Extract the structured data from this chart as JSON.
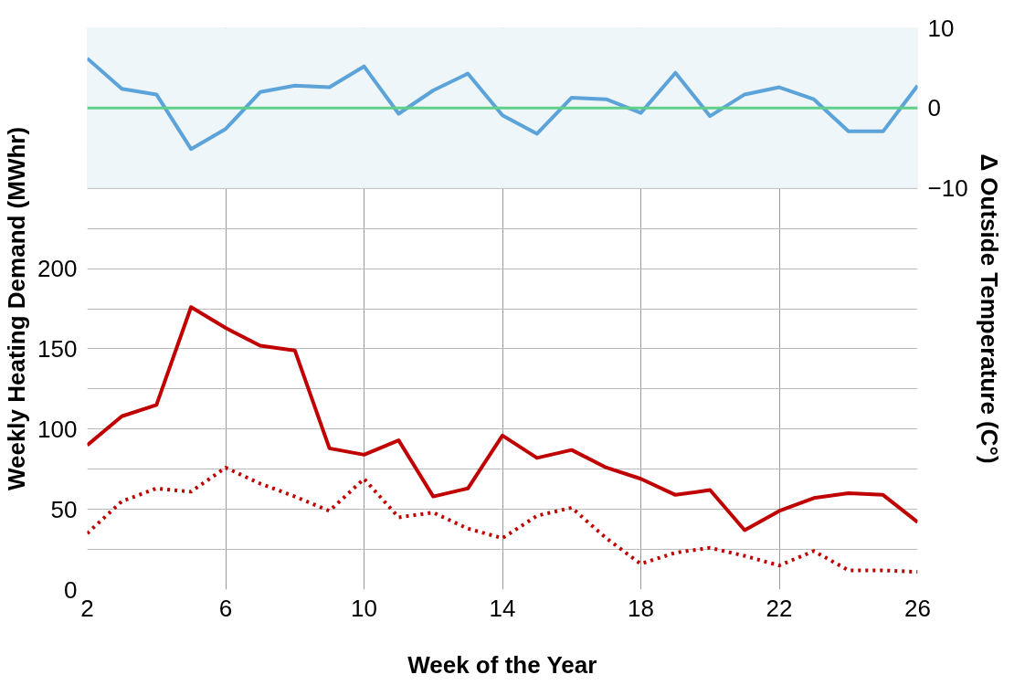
{
  "chart_data": {
    "type": "line",
    "xlabel": "Week of the Year",
    "ylabel": "Weekly Heating Demand (MWhr)",
    "y2label": "Δ Outside Temperature (C°)",
    "x": [
      2,
      3,
      4,
      5,
      6,
      7,
      8,
      9,
      10,
      11,
      12,
      13,
      14,
      15,
      16,
      17,
      18,
      19,
      20,
      21,
      22,
      23,
      24,
      25,
      26
    ],
    "series": [
      {
        "color": "#c00000",
        "line_style": "solid",
        "values": [
          90,
          108,
          115,
          176,
          163,
          152,
          149,
          88,
          84,
          93,
          58,
          63,
          96,
          82,
          87,
          76,
          69,
          59,
          62,
          37,
          49,
          57,
          60,
          59,
          42
        ]
      },
      {
        "color": "#c00000",
        "line_style": "dotted",
        "values": [
          35,
          55,
          63,
          61,
          76,
          66,
          58,
          49,
          69,
          45,
          48,
          38,
          32,
          46,
          51,
          32,
          16,
          23,
          26,
          21,
          15,
          24,
          12,
          12,
          11
        ]
      },
      {
        "color": "#5ba3d9",
        "line_style": "solid",
        "axis": "y2",
        "values": [
          6.2,
          2.4,
          1.7,
          -5.1,
          -2.6,
          2.0,
          2.8,
          2.6,
          5.2,
          -0.7,
          2.2,
          4.3,
          -0.9,
          -3.2,
          1.3,
          1.1,
          -0.6,
          4.4,
          -1.0,
          1.7,
          2.6,
          1.1,
          -2.9,
          -2.9,
          2.8
        ]
      }
    ],
    "xlim": [
      2,
      26
    ],
    "xticks": [
      2,
      6,
      10,
      14,
      18,
      22,
      26
    ],
    "ylim": [
      0,
      350
    ],
    "yticks": [
      0,
      {
        "value": 25,
        "label": null
      },
      50,
      {
        "value": 75,
        "label": null
      },
      100,
      {
        "value": 125,
        "label": null
      },
      150,
      {
        "value": 175,
        "label": null
      },
      200,
      {
        "value": 225,
        "label": null
      },
      {
        "value": 250,
        "label": null
      },
      {
        "value": 275,
        "label": null
      },
      {
        "value": 300,
        "label": null
      },
      {
        "value": 325,
        "label": null
      }
    ],
    "y2lim": [
      -60,
      10
    ],
    "y2ticks": [
      -10,
      0,
      10
    ],
    "bands": [
      {
        "axis": "y2",
        "from": -10,
        "to": 10,
        "color": "#eef6fa"
      }
    ],
    "ref_lines": [
      {
        "axis": "y2",
        "value": 0,
        "color": "#5fcf8a"
      }
    ],
    "grid": true,
    "marker": "none"
  }
}
